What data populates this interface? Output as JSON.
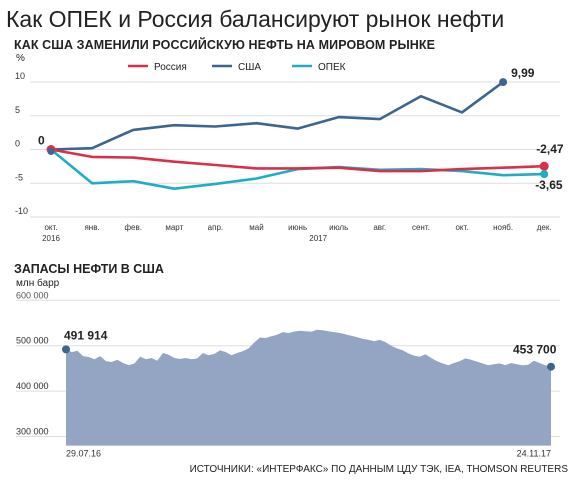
{
  "header": {
    "title": "Как ОПЕК и Россия балансируют рынок нефти"
  },
  "colors": {
    "russia": "#d9304a",
    "usa": "#3c6690",
    "opec": "#1fadc6",
    "area": "#93a5c3",
    "grid": "#dddddd"
  },
  "chart_data": [
    {
      "type": "line",
      "title": "КАК США ЗАМЕНИЛИ РОССИЙСКУЮ НЕФТЬ НА МИРОВОМ РЫНКЕ",
      "ylabel": "%",
      "ylim": [
        -10,
        13
      ],
      "yticks": [
        10,
        5,
        0,
        -5,
        -10
      ],
      "ytick_labels": [
        "10",
        "5",
        "0",
        "-5",
        "-10"
      ],
      "legend_position": "top",
      "xtick_labels": [
        "окт.",
        "янв.",
        "фев.",
        "март",
        "апр.",
        "май",
        "июнь",
        "июль",
        "авг.",
        "сент.",
        "окт.",
        "нояб.",
        "дек."
      ],
      "year_labels": [
        "2016",
        "2017"
      ],
      "series": [
        {
          "name": "Россия",
          "values": [
            0,
            -1.1,
            -1.2,
            -1.8,
            -2.3,
            -2.8,
            -2.8,
            -2.7,
            -3.2,
            -3.2,
            -2.9,
            -2.7,
            -2.47
          ]
        },
        {
          "name": "США",
          "values": [
            0,
            0.2,
            2.9,
            3.6,
            3.4,
            3.9,
            3.1,
            4.8,
            4.5,
            7.9,
            5.5,
            9.99,
            null
          ]
        },
        {
          "name": "ОПЕК",
          "values": [
            0,
            -5.0,
            -4.7,
            -5.8,
            -5.1,
            -4.3,
            -2.9,
            -2.6,
            -3.0,
            -2.9,
            -3.2,
            -3.8,
            -3.65
          ]
        }
      ],
      "annotations": [
        "0",
        "9,99",
        "-2,47",
        "-3,65"
      ]
    },
    {
      "type": "area",
      "title": "ЗАПАСЫ НЕФТИ В США",
      "ylabel": "млн барр",
      "ylim": [
        280000,
        600000
      ],
      "yticks": [
        600000,
        500000,
        400000,
        300000
      ],
      "ytick_labels": [
        "600 000",
        "500 000",
        "400 000",
        "300 000"
      ],
      "x_start_label": "29.07.16",
      "x_end_label": "24.11.17",
      "values": [
        491914,
        486000,
        489000,
        477000,
        475000,
        470000,
        477000,
        466000,
        464000,
        469000,
        462000,
        457000,
        461000,
        476000,
        470000,
        473000,
        467000,
        484000,
        480000,
        473000,
        471000,
        473000,
        470000,
        472000,
        484000,
        479000,
        482000,
        490000,
        486000,
        479000,
        484000,
        488000,
        494000,
        507000,
        518000,
        517000,
        521000,
        524000,
        530000,
        528000,
        531000,
        533000,
        532000,
        531000,
        535000,
        534000,
        532000,
        530000,
        528000,
        525000,
        522000,
        519000,
        515000,
        513000,
        510000,
        513000,
        508000,
        500000,
        494000,
        490000,
        483000,
        478000,
        476000,
        481000,
        473000,
        466000,
        461000,
        457000,
        462000,
        466000,
        472000,
        469000,
        465000,
        461000,
        457000,
        459000,
        461000,
        457000,
        462000,
        459000,
        457000,
        458000,
        467000,
        462000,
        457000,
        453700
      ],
      "annotations": [
        "491 914",
        "453 700"
      ]
    }
  ],
  "footer": {
    "source": "ИСТОЧНИКИ: «ИНТЕРФАКС» ПО ДАННЫМ ЦДУ ТЭК, IEA, THOMSON REUTERS"
  }
}
